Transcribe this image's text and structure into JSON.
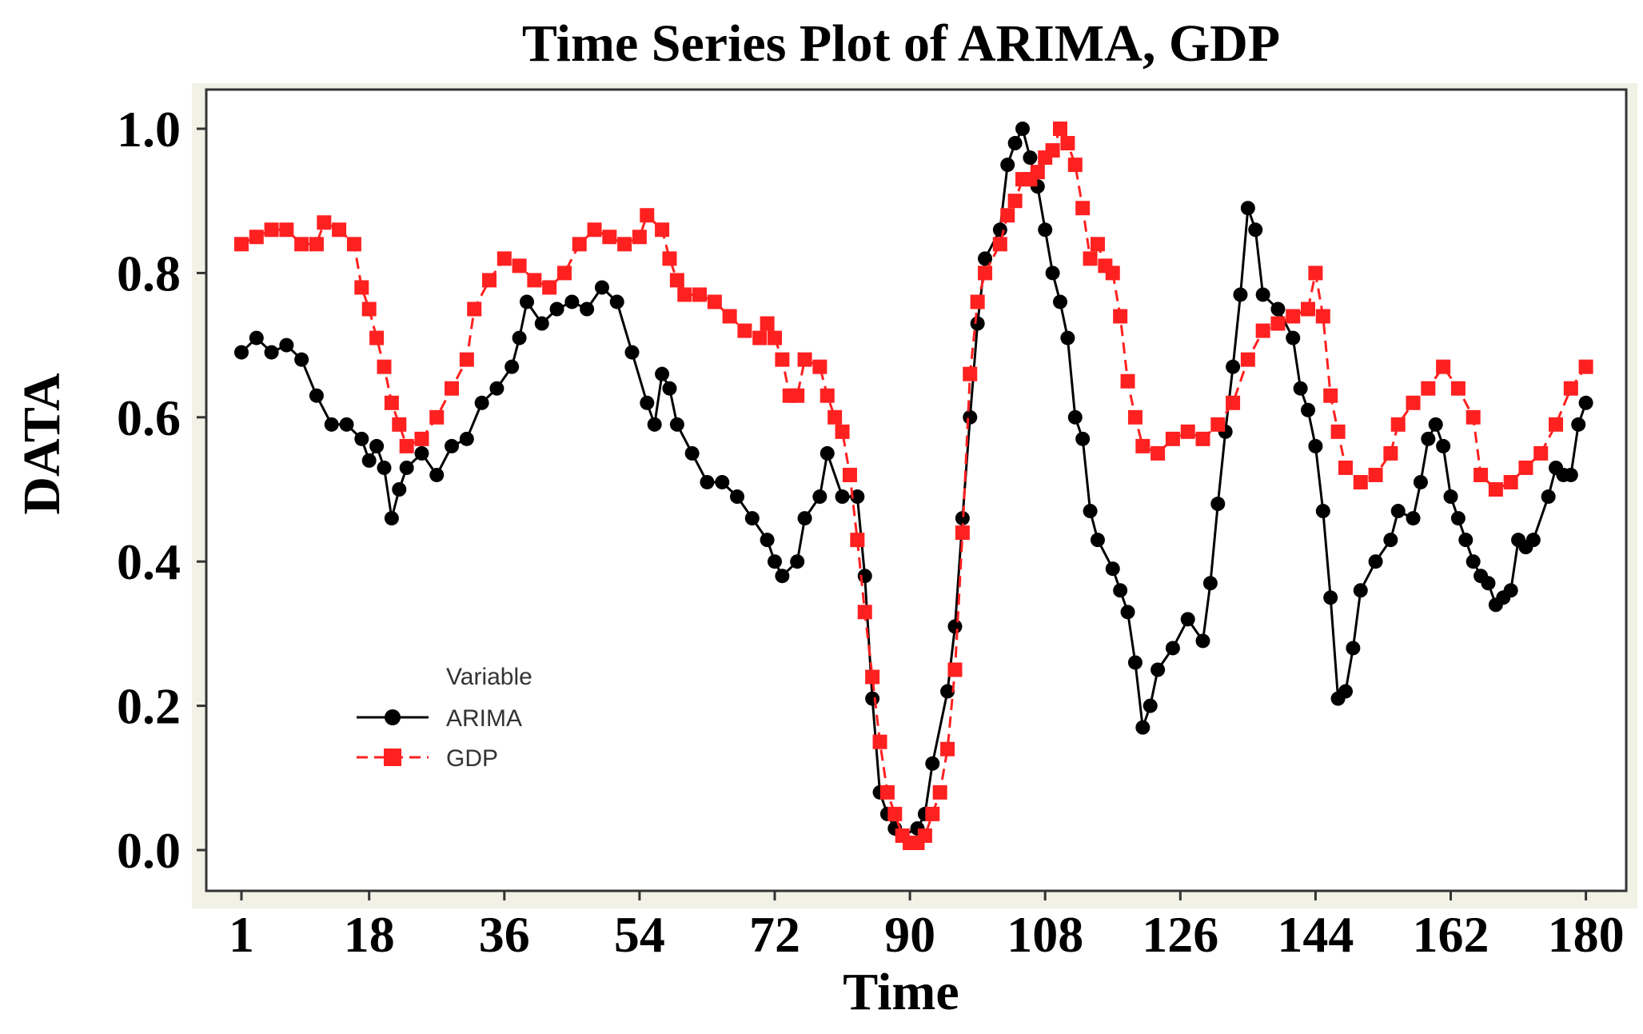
{
  "chart_data": {
    "type": "line",
    "title": "Time Series Plot of ARIMA, GDP",
    "xlabel": "Time",
    "ylabel": "DATA",
    "xlim": [
      1,
      181
    ],
    "ylim": [
      0,
      1.0
    ],
    "x_ticks": [
      1,
      18,
      36,
      54,
      72,
      90,
      108,
      126,
      144,
      162,
      180
    ],
    "y_ticks": [
      "0.0",
      "0.2",
      "0.4",
      "0.6",
      "0.8",
      "1.0"
    ],
    "grid": false,
    "legend": {
      "title": "Variable",
      "position": "middle-left"
    },
    "series": [
      {
        "name": "ARIMA",
        "color": "#000000",
        "marker": "circle",
        "line": "solid",
        "points": [
          [
            1,
            0.69
          ],
          [
            3,
            0.71
          ],
          [
            5,
            0.69
          ],
          [
            7,
            0.7
          ],
          [
            9,
            0.68
          ],
          [
            11,
            0.63
          ],
          [
            13,
            0.59
          ],
          [
            15,
            0.59
          ],
          [
            17,
            0.57
          ],
          [
            18,
            0.54
          ],
          [
            19,
            0.56
          ],
          [
            20,
            0.53
          ],
          [
            21,
            0.46
          ],
          [
            22,
            0.5
          ],
          [
            23,
            0.53
          ],
          [
            25,
            0.55
          ],
          [
            27,
            0.52
          ],
          [
            29,
            0.56
          ],
          [
            31,
            0.57
          ],
          [
            33,
            0.62
          ],
          [
            35,
            0.64
          ],
          [
            37,
            0.67
          ],
          [
            38,
            0.71
          ],
          [
            39,
            0.76
          ],
          [
            41,
            0.73
          ],
          [
            43,
            0.75
          ],
          [
            45,
            0.76
          ],
          [
            47,
            0.75
          ],
          [
            49,
            0.78
          ],
          [
            51,
            0.76
          ],
          [
            53,
            0.69
          ],
          [
            55,
            0.62
          ],
          [
            56,
            0.59
          ],
          [
            57,
            0.66
          ],
          [
            58,
            0.64
          ],
          [
            59,
            0.59
          ],
          [
            61,
            0.55
          ],
          [
            63,
            0.51
          ],
          [
            65,
            0.51
          ],
          [
            67,
            0.49
          ],
          [
            69,
            0.46
          ],
          [
            71,
            0.43
          ],
          [
            72,
            0.4
          ],
          [
            73,
            0.38
          ],
          [
            75,
            0.4
          ],
          [
            76,
            0.46
          ],
          [
            78,
            0.49
          ],
          [
            79,
            0.55
          ],
          [
            81,
            0.49
          ],
          [
            83,
            0.49
          ],
          [
            84,
            0.38
          ],
          [
            85,
            0.21
          ],
          [
            86,
            0.08
          ],
          [
            87,
            0.05
          ],
          [
            88,
            0.03
          ],
          [
            89,
            0.02
          ],
          [
            91,
            0.03
          ],
          [
            92,
            0.05
          ],
          [
            93,
            0.12
          ],
          [
            95,
            0.22
          ],
          [
            96,
            0.31
          ],
          [
            97,
            0.46
          ],
          [
            98,
            0.6
          ],
          [
            99,
            0.73
          ],
          [
            100,
            0.82
          ],
          [
            102,
            0.86
          ],
          [
            103,
            0.95
          ],
          [
            104,
            0.98
          ],
          [
            105,
            1.0
          ],
          [
            106,
            0.96
          ],
          [
            107,
            0.92
          ],
          [
            108,
            0.86
          ],
          [
            109,
            0.8
          ],
          [
            110,
            0.76
          ],
          [
            111,
            0.71
          ],
          [
            112,
            0.6
          ],
          [
            113,
            0.57
          ],
          [
            114,
            0.47
          ],
          [
            115,
            0.43
          ],
          [
            117,
            0.39
          ],
          [
            118,
            0.36
          ],
          [
            119,
            0.33
          ],
          [
            120,
            0.26
          ],
          [
            121,
            0.17
          ],
          [
            122,
            0.2
          ],
          [
            123,
            0.25
          ],
          [
            125,
            0.28
          ],
          [
            127,
            0.32
          ],
          [
            129,
            0.29
          ],
          [
            130,
            0.37
          ],
          [
            131,
            0.48
          ],
          [
            132,
            0.58
          ],
          [
            133,
            0.67
          ],
          [
            134,
            0.77
          ],
          [
            135,
            0.89
          ],
          [
            136,
            0.86
          ],
          [
            137,
            0.77
          ],
          [
            139,
            0.75
          ],
          [
            141,
            0.71
          ],
          [
            142,
            0.64
          ],
          [
            143,
            0.61
          ],
          [
            144,
            0.56
          ],
          [
            145,
            0.47
          ],
          [
            146,
            0.35
          ],
          [
            147,
            0.21
          ],
          [
            148,
            0.22
          ],
          [
            149,
            0.28
          ],
          [
            150,
            0.36
          ],
          [
            152,
            0.4
          ],
          [
            154,
            0.43
          ],
          [
            155,
            0.47
          ],
          [
            157,
            0.46
          ],
          [
            158,
            0.51
          ],
          [
            159,
            0.57
          ],
          [
            160,
            0.59
          ],
          [
            161,
            0.56
          ],
          [
            162,
            0.49
          ],
          [
            163,
            0.46
          ],
          [
            164,
            0.43
          ],
          [
            165,
            0.4
          ],
          [
            166,
            0.38
          ],
          [
            167,
            0.37
          ],
          [
            168,
            0.34
          ],
          [
            169,
            0.35
          ],
          [
            170,
            0.36
          ],
          [
            171,
            0.43
          ],
          [
            172,
            0.42
          ],
          [
            173,
            0.43
          ],
          [
            175,
            0.49
          ],
          [
            176,
            0.53
          ],
          [
            177,
            0.52
          ],
          [
            178,
            0.52
          ],
          [
            179,
            0.59
          ],
          [
            180,
            0.62
          ]
        ]
      },
      {
        "name": "GDP",
        "color": "#ff2020",
        "marker": "square",
        "line": "dashed",
        "points": [
          [
            1,
            0.84
          ],
          [
            3,
            0.85
          ],
          [
            5,
            0.86
          ],
          [
            7,
            0.86
          ],
          [
            9,
            0.84
          ],
          [
            11,
            0.84
          ],
          [
            12,
            0.87
          ],
          [
            14,
            0.86
          ],
          [
            16,
            0.84
          ],
          [
            17,
            0.78
          ],
          [
            18,
            0.75
          ],
          [
            19,
            0.71
          ],
          [
            20,
            0.67
          ],
          [
            21,
            0.62
          ],
          [
            22,
            0.59
          ],
          [
            23,
            0.56
          ],
          [
            25,
            0.57
          ],
          [
            27,
            0.6
          ],
          [
            29,
            0.64
          ],
          [
            31,
            0.68
          ],
          [
            32,
            0.75
          ],
          [
            34,
            0.79
          ],
          [
            36,
            0.82
          ],
          [
            38,
            0.81
          ],
          [
            40,
            0.79
          ],
          [
            42,
            0.78
          ],
          [
            44,
            0.8
          ],
          [
            46,
            0.84
          ],
          [
            48,
            0.86
          ],
          [
            50,
            0.85
          ],
          [
            52,
            0.84
          ],
          [
            54,
            0.85
          ],
          [
            55,
            0.88
          ],
          [
            57,
            0.86
          ],
          [
            58,
            0.82
          ],
          [
            59,
            0.79
          ],
          [
            60,
            0.77
          ],
          [
            62,
            0.77
          ],
          [
            64,
            0.76
          ],
          [
            66,
            0.74
          ],
          [
            68,
            0.72
          ],
          [
            70,
            0.71
          ],
          [
            71,
            0.73
          ],
          [
            72,
            0.71
          ],
          [
            73,
            0.68
          ],
          [
            74,
            0.63
          ],
          [
            75,
            0.63
          ],
          [
            76,
            0.68
          ],
          [
            78,
            0.67
          ],
          [
            79,
            0.63
          ],
          [
            80,
            0.6
          ],
          [
            81,
            0.58
          ],
          [
            82,
            0.52
          ],
          [
            83,
            0.43
          ],
          [
            84,
            0.33
          ],
          [
            85,
            0.24
          ],
          [
            86,
            0.15
          ],
          [
            87,
            0.08
          ],
          [
            88,
            0.05
          ],
          [
            89,
            0.02
          ],
          [
            90,
            0.01
          ],
          [
            91,
            0.01
          ],
          [
            92,
            0.02
          ],
          [
            93,
            0.05
          ],
          [
            94,
            0.08
          ],
          [
            95,
            0.14
          ],
          [
            96,
            0.25
          ],
          [
            97,
            0.44
          ],
          [
            98,
            0.66
          ],
          [
            99,
            0.76
          ],
          [
            100,
            0.8
          ],
          [
            102,
            0.84
          ],
          [
            103,
            0.88
          ],
          [
            104,
            0.9
          ],
          [
            105,
            0.93
          ],
          [
            106,
            0.93
          ],
          [
            107,
            0.94
          ],
          [
            108,
            0.96
          ],
          [
            109,
            0.97
          ],
          [
            110,
            1.0
          ],
          [
            111,
            0.98
          ],
          [
            112,
            0.95
          ],
          [
            113,
            0.89
          ],
          [
            114,
            0.82
          ],
          [
            115,
            0.84
          ],
          [
            116,
            0.81
          ],
          [
            117,
            0.8
          ],
          [
            118,
            0.74
          ],
          [
            119,
            0.65
          ],
          [
            120,
            0.6
          ],
          [
            121,
            0.56
          ],
          [
            123,
            0.55
          ],
          [
            125,
            0.57
          ],
          [
            127,
            0.58
          ],
          [
            129,
            0.57
          ],
          [
            131,
            0.59
          ],
          [
            133,
            0.62
          ],
          [
            135,
            0.68
          ],
          [
            137,
            0.72
          ],
          [
            139,
            0.73
          ],
          [
            141,
            0.74
          ],
          [
            143,
            0.75
          ],
          [
            144,
            0.8
          ],
          [
            145,
            0.74
          ],
          [
            146,
            0.63
          ],
          [
            147,
            0.58
          ],
          [
            148,
            0.53
          ],
          [
            150,
            0.51
          ],
          [
            152,
            0.52
          ],
          [
            154,
            0.55
          ],
          [
            155,
            0.59
          ],
          [
            157,
            0.62
          ],
          [
            159,
            0.64
          ],
          [
            161,
            0.67
          ],
          [
            163,
            0.64
          ],
          [
            165,
            0.6
          ],
          [
            166,
            0.52
          ],
          [
            168,
            0.5
          ],
          [
            170,
            0.51
          ],
          [
            172,
            0.53
          ],
          [
            174,
            0.55
          ],
          [
            176,
            0.59
          ],
          [
            178,
            0.64
          ],
          [
            180,
            0.67
          ]
        ]
      }
    ]
  }
}
